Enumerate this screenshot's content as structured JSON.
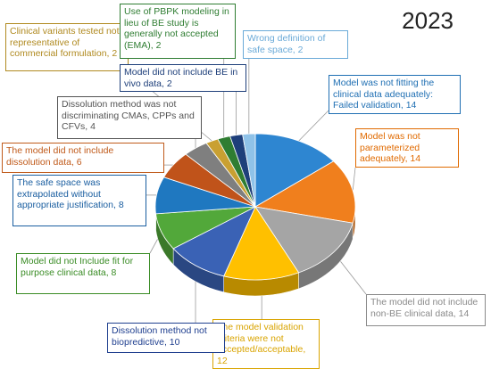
{
  "year_label": "2023",
  "chart_data": {
    "type": "pie",
    "title": "2023",
    "slices": [
      {
        "label": "Model was not fitting the clinical data adequately: Failed validation, 14",
        "value": 14,
        "color": "#2e86d1",
        "label_color": "#1f6fb3"
      },
      {
        "label": "Model was not parameterized adequately, 14",
        "value": 14,
        "color": "#f07f1d",
        "label_color": "#e06a00"
      },
      {
        "label": "The model did not include non-BE clinical data, 14",
        "value": 14,
        "color": "#a5a5a5",
        "label_color": "#8a8a8a"
      },
      {
        "label": "The model validation criteria were not accepted/acceptable, 12",
        "value": 12,
        "color": "#ffc000",
        "label_color": "#d9a400"
      },
      {
        "label": "Dissolution method not biopredictive, 10",
        "value": 10,
        "color": "#3a62b5",
        "label_color": "#1f3f8f"
      },
      {
        "label": "Model did not Include fit for purpose clinical data, 8",
        "value": 8,
        "color": "#52a83a",
        "label_color": "#3a8c25"
      },
      {
        "label": "The safe space was extrapolated without appropriate justification, 8",
        "value": 8,
        "color": "#1f78c0",
        "label_color": "#1a5ea0"
      },
      {
        "label": "The model did not include dissolution data, 6",
        "value": 6,
        "color": "#c0531a",
        "label_color": "#c05a1a"
      },
      {
        "label": "Dissolution method was not discriminating CMAs, CPPs and CFVs, 4",
        "value": 4,
        "color": "#7f7f7f",
        "label_color": "#555555"
      },
      {
        "label": "Clinical variants tested not representative of commercial formulation, 2",
        "value": 2,
        "color": "#c9a032",
        "label_color": "#b08a20"
      },
      {
        "label": "Use of PBPK modeling in lieu of BE study is generally not accepted (EMA), 2",
        "value": 2,
        "color": "#2f7d32",
        "label_color": "#2f7d32"
      },
      {
        "label": "Model did not include BE in vivo data, 2",
        "value": 2,
        "color": "#1e3f7a",
        "label_color": "#1e3f7a"
      },
      {
        "label": "Wrong definition of safe space, 2",
        "value": 2,
        "color": "#8fc2e8",
        "label_color": "#6aaad8"
      }
    ]
  }
}
